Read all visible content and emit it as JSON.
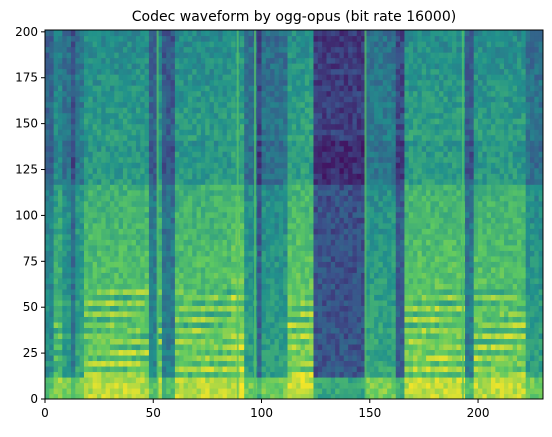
{
  "chart_data": {
    "type": "heatmap",
    "title": "Codec waveform by ogg-opus (bit rate 16000)",
    "xlabel": "",
    "ylabel": "",
    "xlim": [
      0,
      230
    ],
    "ylim": [
      0,
      201
    ],
    "x_ticks": [
      0,
      50,
      100,
      150,
      200
    ],
    "y_ticks": [
      0,
      25,
      50,
      75,
      100,
      125,
      150,
      175,
      200
    ],
    "colormap": "viridis",
    "value_range": [
      0,
      1
    ],
    "grid": false,
    "legend": "none",
    "segments": [
      {
        "x": [
          0,
          4
        ],
        "level": 0.45
      },
      {
        "x": [
          4,
          8
        ],
        "level": 0.72
      },
      {
        "x": [
          8,
          12
        ],
        "level": 0.55
      },
      {
        "x": [
          12,
          14
        ],
        "level": 0.3
      },
      {
        "x": [
          14,
          18
        ],
        "level": 0.6
      },
      {
        "x": [
          18,
          48
        ],
        "level": 0.85
      },
      {
        "x": [
          48,
          52
        ],
        "level": 0.4
      },
      {
        "x": [
          52,
          55
        ],
        "level": 0.78
      },
      {
        "x": [
          55,
          60
        ],
        "level": 0.35
      },
      {
        "x": [
          60,
          86
        ],
        "level": 0.85
      },
      {
        "x": [
          86,
          93
        ],
        "level": 0.95
      },
      {
        "x": [
          93,
          98
        ],
        "level": 0.55
      },
      {
        "x": [
          98,
          100
        ],
        "level": 0.2
      },
      {
        "x": [
          100,
          112
        ],
        "level": 0.55
      },
      {
        "x": [
          112,
          124
        ],
        "level": 0.9
      },
      {
        "x": [
          124,
          148
        ],
        "level": 0.12
      },
      {
        "x": [
          148,
          163
        ],
        "level": 0.6
      },
      {
        "x": [
          163,
          166
        ],
        "level": 0.2
      },
      {
        "x": [
          166,
          194
        ],
        "level": 0.88
      },
      {
        "x": [
          194,
          198
        ],
        "level": 0.35
      },
      {
        "x": [
          198,
          222
        ],
        "level": 0.86
      },
      {
        "x": [
          222,
          230
        ],
        "level": 0.55
      }
    ],
    "bright_lines": [
      {
        "x": 52
      },
      {
        "x": 89
      },
      {
        "x": 97
      },
      {
        "x": 148
      },
      {
        "x": 193
      }
    ]
  }
}
